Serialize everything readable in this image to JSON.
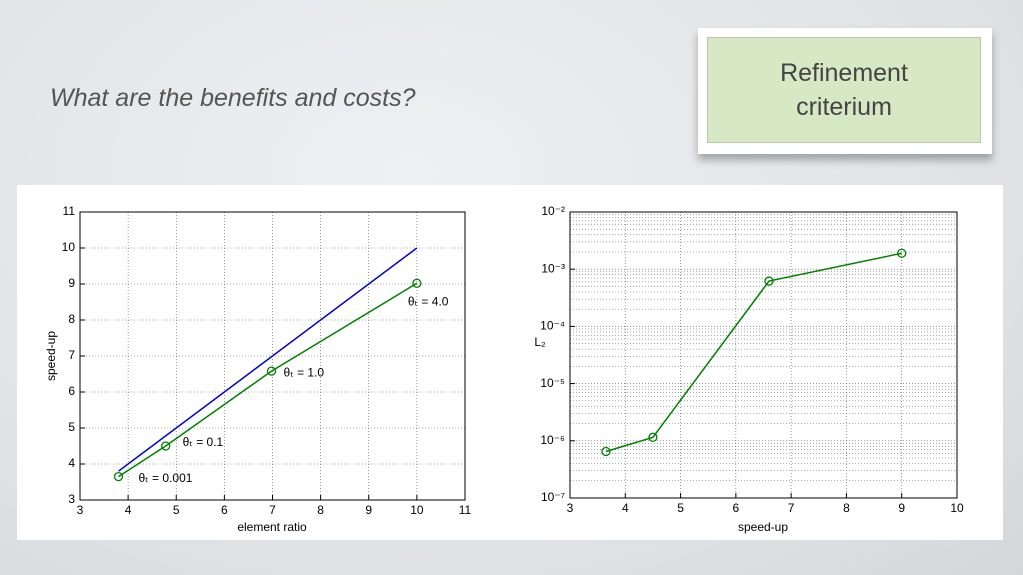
{
  "slide": {
    "title": "What are the benefits and costs?",
    "callout": "Refinement criterium"
  },
  "chart_data": [
    {
      "type": "line",
      "xlabel": "element ratio",
      "ylabel": "speed-up",
      "xlim": [
        3,
        11
      ],
      "ylim": [
        3,
        11
      ],
      "xticks": [
        3,
        4,
        5,
        6,
        7,
        8,
        9,
        10,
        11
      ],
      "yticks": [
        3,
        4,
        5,
        6,
        7,
        8,
        9,
        10,
        11
      ],
      "grid": true,
      "series": [
        {
          "color": "#0000cc",
          "x": [
            3.8,
            10
          ],
          "values": [
            3.8,
            10
          ],
          "marker": false
        },
        {
          "color": "#008000",
          "x": [
            3.8,
            4.78,
            6.98,
            10
          ],
          "values": [
            3.65,
            4.5,
            6.58,
            9.02
          ],
          "marker": true,
          "point_labels": [
            "θₜ = 0.001",
            "θₜ = 0.1",
            "θₜ = 1.0",
            "θₜ = 4.0"
          ]
        }
      ]
    },
    {
      "type": "line",
      "xlabel": "speed-up",
      "ylabel": "L₂",
      "yscale": "log",
      "xlim": [
        3,
        10
      ],
      "ylim": [
        1e-07,
        0.01
      ],
      "xticks": [
        3,
        4,
        5,
        6,
        7,
        8,
        9,
        10
      ],
      "yticks": [
        {
          "value": 1e-07,
          "label": "10⁻⁷"
        },
        {
          "value": 1e-06,
          "label": "10⁻⁶"
        },
        {
          "value": 1e-05,
          "label": "10⁻⁵"
        },
        {
          "value": 0.0001,
          "label": "10⁻⁴"
        },
        {
          "value": 0.001,
          "label": "10⁻³"
        },
        {
          "value": 0.01,
          "label": "10⁻²"
        }
      ],
      "grid": true,
      "minor_grid": true,
      "series": [
        {
          "color": "#008000",
          "x": [
            3.65,
            4.5,
            6.6,
            9.0
          ],
          "values": [
            6.5e-07,
            1.15e-06,
            0.00062,
            0.0019
          ],
          "marker": true
        }
      ]
    }
  ]
}
